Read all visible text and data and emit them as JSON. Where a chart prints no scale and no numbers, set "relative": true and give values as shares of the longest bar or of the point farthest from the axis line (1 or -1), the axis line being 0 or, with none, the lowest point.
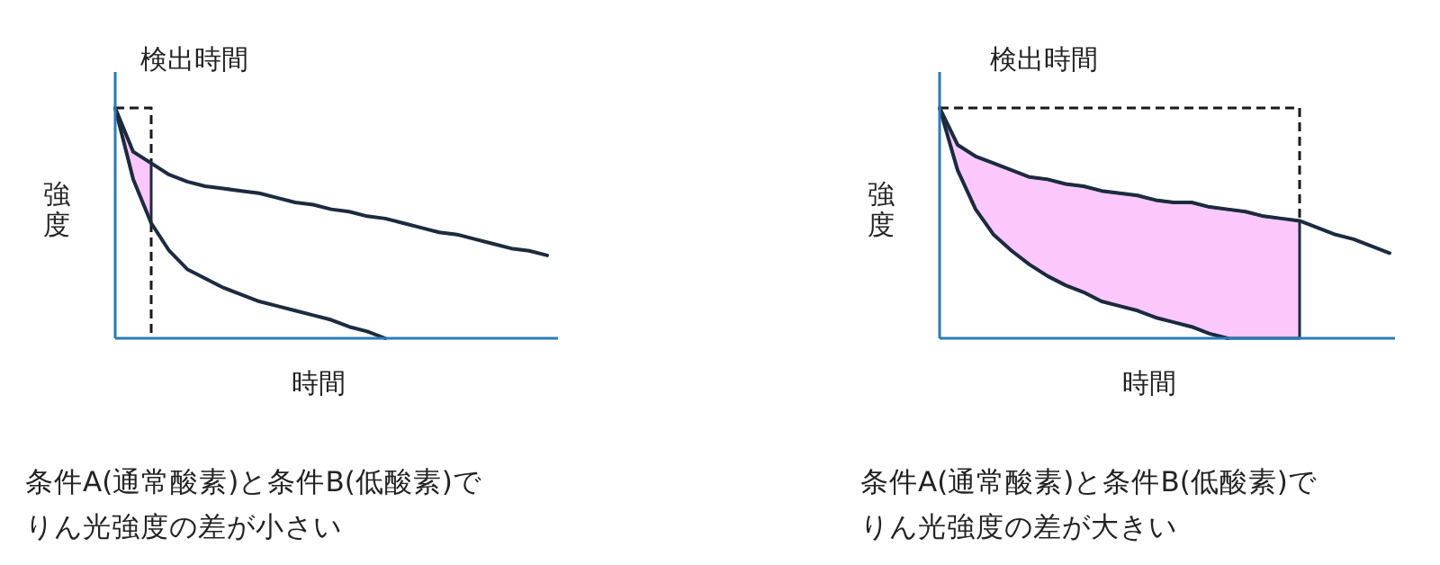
{
  "chart_data": [
    {
      "type": "line",
      "relative": true,
      "xlabel": "時間",
      "ylabel": "強度",
      "categories": [
        null,
        null,
        null,
        null,
        null,
        null,
        null,
        null,
        null,
        null,
        null,
        null,
        null,
        null,
        null,
        null,
        null,
        null,
        null,
        null,
        null,
        null,
        null,
        null,
        null
      ],
      "series": [
        {
          "color": "#1c2b3f",
          "values": [
            1,
            0.81,
            0.76,
            0.71,
            0.68,
            0.66,
            0.65,
            0.64,
            0.63,
            0.61,
            0.59,
            0.58,
            0.56,
            0.55,
            0.53,
            0.52,
            0.5,
            0.48,
            0.46,
            0.45,
            0.43,
            0.41,
            0.39,
            0.38,
            0.36
          ],
          "lower": [
            1,
            0.69,
            0.5,
            null,
            null,
            null,
            null,
            null,
            null,
            null,
            null,
            null,
            null,
            null,
            null,
            null,
            null,
            null,
            null,
            null,
            null,
            null,
            null,
            null,
            null
          ],
          "upper": [
            1,
            0.81,
            0.76,
            null,
            null,
            null,
            null,
            null,
            null,
            null,
            null,
            null,
            null,
            null,
            null,
            null,
            null,
            null,
            null,
            null,
            null,
            null,
            null,
            null,
            null
          ]
        },
        {
          "color": "#1c2b3f",
          "values": [
            1,
            0.69,
            0.5,
            0.38,
            0.3,
            0.26,
            0.22,
            0.19,
            0.16,
            0.14,
            0.12,
            0.1,
            0.08,
            0.05,
            0.03,
            0,
            null,
            null,
            null,
            null,
            null,
            null,
            null,
            null,
            null
          ]
        }
      ],
      "annotations": [
        "検出時間",
        "条件A(通常酸素)と条件B(低酸素)で",
        "りん光強度の差が小さい"
      ]
    },
    {
      "type": "line",
      "relative": true,
      "xlabel": "時間",
      "ylabel": "強度",
      "categories": [
        null,
        null,
        null,
        null,
        null,
        null,
        null,
        null,
        null,
        null,
        null,
        null,
        null,
        null,
        null,
        null,
        null,
        null,
        null,
        null,
        null,
        null,
        null,
        null,
        null,
        null
      ],
      "series": [
        {
          "color": "#1c2b3f",
          "values": [
            1,
            0.84,
            0.79,
            0.76,
            0.73,
            0.7,
            0.69,
            0.67,
            0.66,
            0.64,
            0.63,
            0.62,
            0.6,
            0.59,
            0.59,
            0.57,
            0.56,
            0.55,
            0.53,
            0.52,
            0.51,
            0.48,
            0.45,
            0.43,
            0.4,
            0.37
          ],
          "lower": [
            1,
            0.73,
            0.56,
            0.45,
            0.38,
            0.32,
            0.27,
            0.23,
            0.2,
            0.16,
            0.14,
            0.12,
            0.09,
            0.07,
            0.05,
            0.02,
            0,
            0,
            0,
            0,
            0,
            null,
            null,
            null,
            null,
            null
          ],
          "upper": [
            1,
            0.84,
            0.79,
            0.76,
            0.73,
            0.7,
            0.69,
            0.67,
            0.66,
            0.64,
            0.63,
            0.62,
            0.6,
            0.59,
            0.59,
            0.57,
            0.56,
            0.55,
            0.53,
            0.52,
            0.51,
            null,
            null,
            null,
            null,
            null
          ]
        },
        {
          "color": "#1c2b3f",
          "values": [
            1,
            0.73,
            0.56,
            0.45,
            0.38,
            0.32,
            0.27,
            0.23,
            0.2,
            0.16,
            0.14,
            0.12,
            0.09,
            0.07,
            0.05,
            0.02,
            0,
            null,
            null,
            null,
            null,
            null,
            null,
            null,
            null,
            null
          ]
        }
      ],
      "annotations": [
        "検出時間",
        "条件A(通常酸素)と条件B(低酸素)で",
        "りん光強度の差が大きい"
      ]
    }
  ]
}
